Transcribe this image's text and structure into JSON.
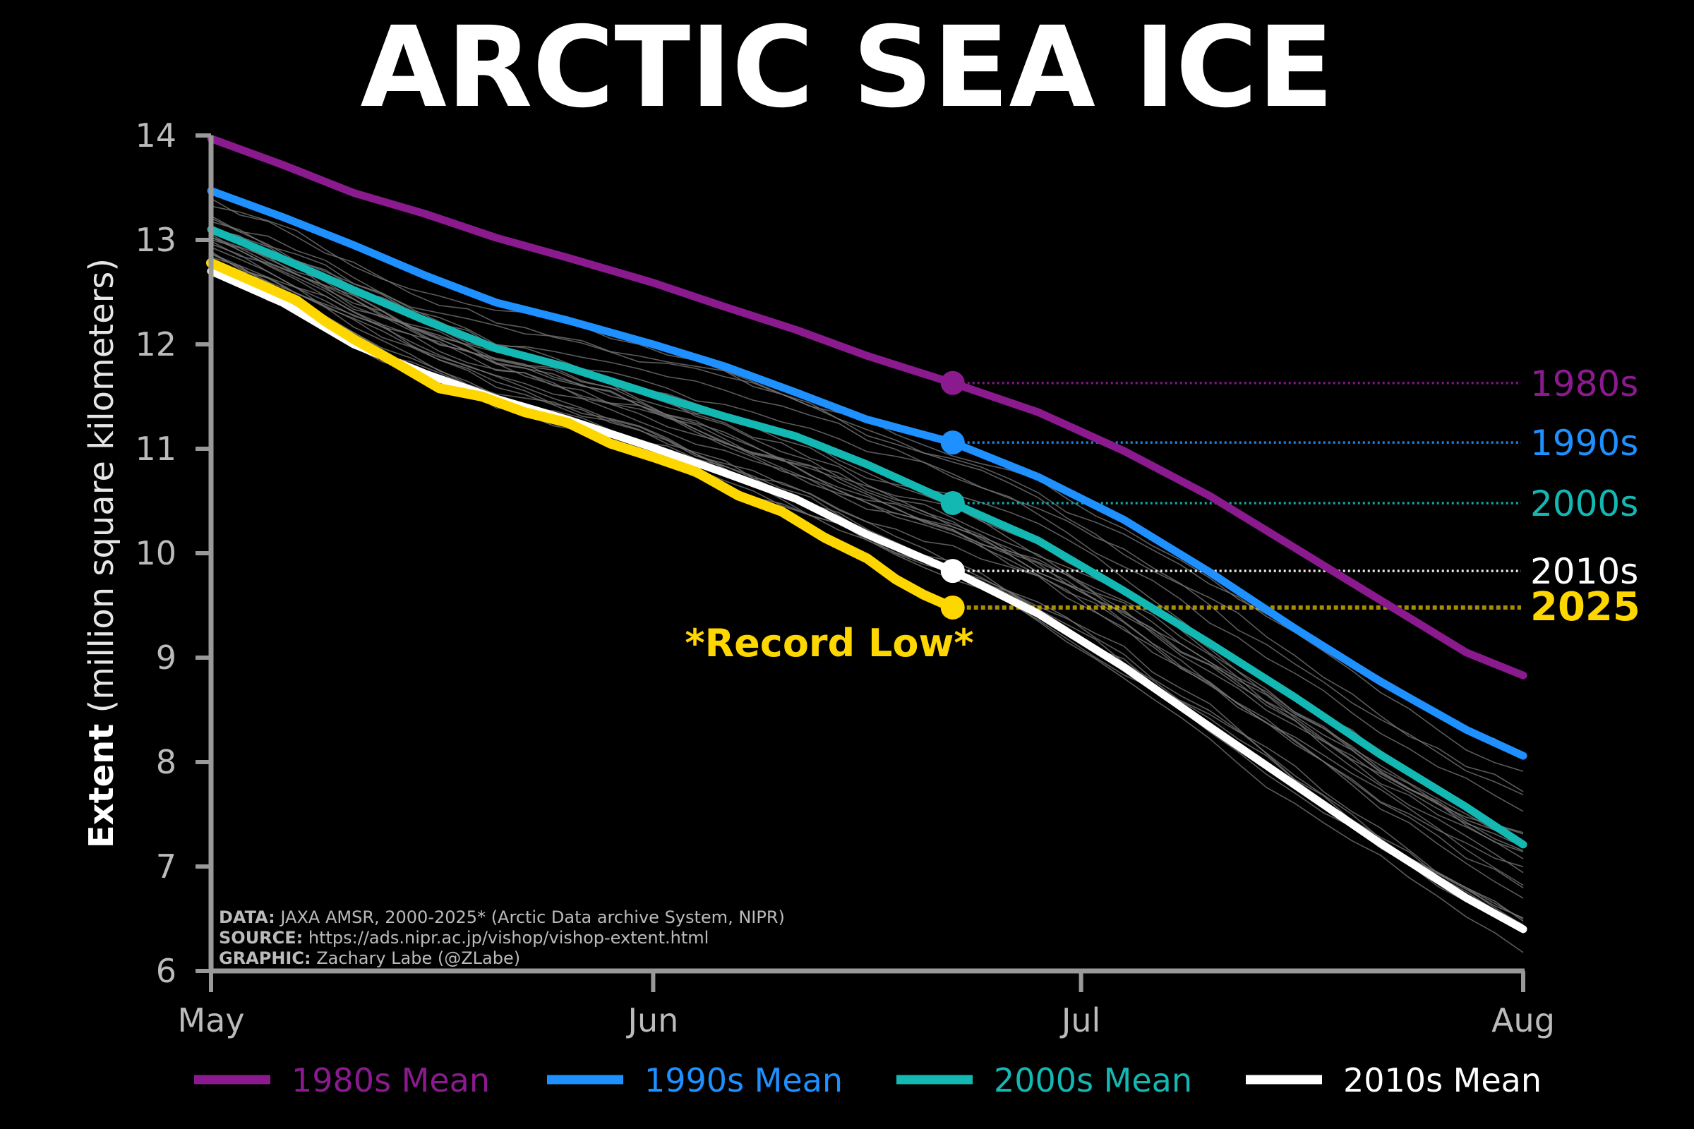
{
  "title": "ARCTIC SEA ICE",
  "ylabel_bold": "Extent",
  "ylabel_rest": " (million square kilometers)",
  "annotation": "*Record Low*",
  "credits": [
    {
      "key": "DATA:",
      "text": " JAXA AMSR, 2000-2025* (Arctic Data archive System, NIPR)"
    },
    {
      "key": "SOURCE:",
      "text": " https://ads.nipr.ac.jp/vishop/vishop-extent.html"
    },
    {
      "key": "GRAPHIC:",
      "text": " Zachary Labe (@ZLabe)"
    }
  ],
  "chart_data": {
    "type": "line",
    "xlim": [
      0,
      92
    ],
    "ylim": [
      6,
      14
    ],
    "x_ticks": [
      {
        "label": "May",
        "day": 0
      },
      {
        "label": "Jun",
        "day": 31
      },
      {
        "label": "Jul",
        "day": 61
      },
      {
        "label": "Aug",
        "day": 92
      }
    ],
    "y_ticks": [
      "6",
      "7",
      "8",
      "9",
      "10",
      "11",
      "12",
      "13",
      "14"
    ],
    "marker_day": 52,
    "series": [
      {
        "name": "1980s Mean",
        "label": "1980s",
        "color": "#8b1a8f",
        "x": [
          0,
          5,
          10,
          15,
          20,
          25,
          31,
          36,
          41,
          46,
          52,
          58,
          64,
          70,
          76,
          82,
          88,
          92
        ],
        "y": [
          13.97,
          13.72,
          13.45,
          13.25,
          13.02,
          12.83,
          12.59,
          12.36,
          12.14,
          11.89,
          11.63,
          11.35,
          10.98,
          10.55,
          10.05,
          9.55,
          9.05,
          8.83
        ]
      },
      {
        "name": "1990s Mean",
        "label": "1990s",
        "color": "#1e90ff",
        "x": [
          0,
          5,
          10,
          15,
          20,
          25,
          31,
          36,
          41,
          46,
          52,
          58,
          64,
          70,
          76,
          82,
          88,
          92
        ],
        "y": [
          13.47,
          13.22,
          12.95,
          12.66,
          12.4,
          12.23,
          12.0,
          11.79,
          11.54,
          11.28,
          11.06,
          10.73,
          10.32,
          9.82,
          9.28,
          8.77,
          8.31,
          8.06
        ]
      },
      {
        "name": "2000s Mean",
        "label": "2000s",
        "color": "#14b8b3",
        "x": [
          0,
          5,
          10,
          15,
          20,
          25,
          31,
          36,
          41,
          46,
          52,
          58,
          64,
          70,
          76,
          82,
          88,
          92
        ],
        "y": [
          13.1,
          12.82,
          12.52,
          12.23,
          11.96,
          11.78,
          11.52,
          11.31,
          11.12,
          10.85,
          10.48,
          10.12,
          9.64,
          9.14,
          8.62,
          8.07,
          7.57,
          7.21
        ]
      },
      {
        "name": "2010s Mean",
        "label": "2010s",
        "color": "#ffffff",
        "x": [
          0,
          5,
          10,
          15,
          20,
          25,
          31,
          36,
          41,
          46,
          52,
          58,
          64,
          70,
          76,
          82,
          88,
          92
        ],
        "y": [
          12.7,
          12.4,
          12.0,
          11.72,
          11.48,
          11.28,
          11.01,
          10.77,
          10.52,
          10.18,
          9.83,
          9.42,
          8.91,
          8.34,
          7.78,
          7.22,
          6.7,
          6.4
        ]
      },
      {
        "name": "2025",
        "label": "2025",
        "color": "#ffd700",
        "x": [
          0,
          3,
          6,
          8,
          10,
          13,
          16,
          19,
          22,
          25,
          28,
          31,
          34,
          37,
          40,
          43,
          46,
          48,
          50,
          52
        ],
        "y": [
          12.78,
          12.6,
          12.42,
          12.22,
          12.05,
          11.82,
          11.58,
          11.5,
          11.35,
          11.25,
          11.05,
          10.92,
          10.78,
          10.55,
          10.4,
          10.15,
          9.95,
          9.75,
          9.6,
          9.48
        ]
      }
    ],
    "legend": [
      "1980s Mean",
      "1990s Mean",
      "2000s Mean",
      "2010s Mean"
    ],
    "legend_placement": "bottom",
    "background_years": 25
  }
}
